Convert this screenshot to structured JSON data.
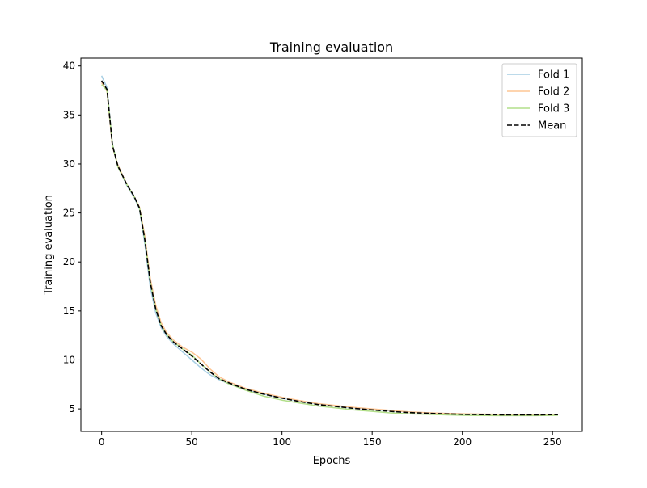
{
  "chart_data": {
    "type": "line",
    "title": "Training evaluation",
    "xlabel": "Epochs",
    "ylabel": "Training evaluation",
    "xlim": [
      -11.5,
      266.5
    ],
    "ylim": [
      2.7,
      40.8
    ],
    "xticks": [
      0,
      50,
      100,
      150,
      200,
      250
    ],
    "yticks": [
      5,
      10,
      15,
      20,
      25,
      30,
      35,
      40
    ],
    "grid": false,
    "legend_position": "top-right",
    "series": [
      {
        "name": "Fold 1",
        "color": "#a6cee3",
        "style": "solid",
        "x": [
          0,
          3,
          6,
          9,
          14,
          18,
          21,
          24,
          27,
          30,
          33,
          36,
          40,
          45,
          50,
          55,
          60,
          65,
          70,
          80,
          90,
          100,
          110,
          120,
          130,
          140,
          150,
          160,
          170,
          180,
          190,
          200,
          210,
          220,
          230,
          240,
          253
        ],
        "y": [
          39.0,
          37.8,
          32.0,
          29.8,
          27.8,
          26.6,
          25.4,
          21.8,
          17.4,
          14.8,
          13.3,
          12.4,
          11.6,
          10.8,
          10.0,
          9.2,
          8.5,
          8.0,
          7.6,
          7.0,
          6.5,
          6.1,
          5.8,
          5.5,
          5.3,
          5.1,
          4.95,
          4.8,
          4.7,
          4.6,
          4.55,
          4.5,
          4.45,
          4.45,
          4.42,
          4.42,
          4.45
        ]
      },
      {
        "name": "Fold 2",
        "color": "#fdc593",
        "style": "solid",
        "x": [
          0,
          3,
          6,
          9,
          14,
          18,
          21,
          24,
          27,
          30,
          33,
          36,
          40,
          45,
          50,
          55,
          60,
          65,
          70,
          80,
          90,
          100,
          110,
          120,
          130,
          140,
          150,
          160,
          170,
          180,
          190,
          200,
          210,
          220,
          230,
          240,
          253
        ],
        "y": [
          38.3,
          37.4,
          31.8,
          29.9,
          27.9,
          26.7,
          25.6,
          22.6,
          18.3,
          15.6,
          13.8,
          12.8,
          12.0,
          11.3,
          10.8,
          10.1,
          9.1,
          8.3,
          7.8,
          7.1,
          6.6,
          6.2,
          5.85,
          5.55,
          5.35,
          5.15,
          5.0,
          4.85,
          4.7,
          4.62,
          4.55,
          4.5,
          4.47,
          4.45,
          4.43,
          4.43,
          4.45
        ]
      },
      {
        "name": "Fold 3",
        "color": "#b2df8a",
        "style": "solid",
        "x": [
          0,
          3,
          6,
          9,
          14,
          18,
          21,
          24,
          27,
          30,
          33,
          36,
          40,
          45,
          50,
          55,
          60,
          65,
          70,
          80,
          90,
          100,
          110,
          120,
          130,
          140,
          150,
          160,
          170,
          180,
          190,
          200,
          210,
          220,
          230,
          240,
          253
        ],
        "y": [
          38.1,
          37.5,
          32.0,
          29.7,
          27.9,
          26.7,
          25.5,
          22.2,
          17.9,
          15.2,
          13.5,
          12.6,
          11.8,
          11.1,
          10.5,
          9.6,
          8.8,
          8.1,
          7.6,
          6.9,
          6.3,
          5.9,
          5.6,
          5.3,
          5.1,
          4.9,
          4.75,
          4.6,
          4.5,
          4.45,
          4.4,
          4.35,
          4.33,
          4.32,
          4.32,
          4.32,
          4.35
        ]
      },
      {
        "name": "Mean",
        "color": "#000000",
        "style": "dashed",
        "x": [
          0,
          3,
          6,
          9,
          14,
          18,
          21,
          24,
          27,
          30,
          33,
          36,
          40,
          45,
          50,
          55,
          60,
          65,
          70,
          80,
          90,
          100,
          110,
          120,
          130,
          140,
          150,
          160,
          170,
          180,
          190,
          200,
          210,
          220,
          230,
          240,
          253
        ],
        "y": [
          38.5,
          37.6,
          31.9,
          29.8,
          27.9,
          26.7,
          25.5,
          22.2,
          17.9,
          15.2,
          13.5,
          12.6,
          11.8,
          11.1,
          10.4,
          9.6,
          8.8,
          8.1,
          7.7,
          7.0,
          6.5,
          6.1,
          5.75,
          5.45,
          5.25,
          5.05,
          4.9,
          4.75,
          4.63,
          4.56,
          4.5,
          4.45,
          4.42,
          4.4,
          4.39,
          4.39,
          4.42
        ]
      }
    ]
  }
}
